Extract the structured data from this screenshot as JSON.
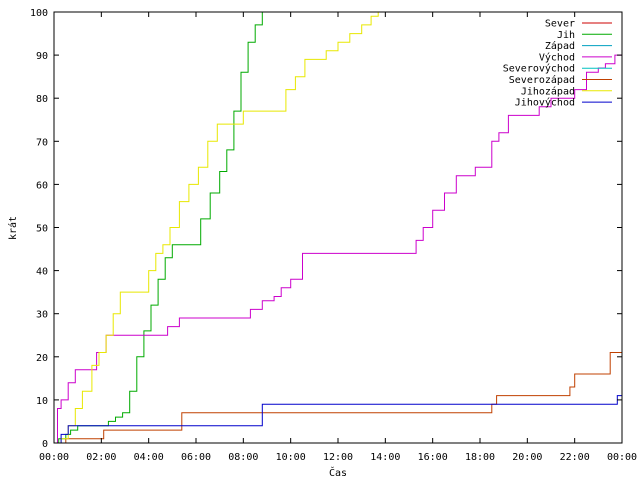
{
  "chart_data": {
    "type": "line",
    "title": "",
    "xlabel": "Čas",
    "ylabel": "krát",
    "xlim": [
      0,
      24
    ],
    "ylim": [
      0,
      100
    ],
    "x_ticks": [
      0,
      2,
      4,
      6,
      8,
      10,
      12,
      14,
      16,
      18,
      20,
      22,
      24
    ],
    "x_tick_labels": [
      "00:00",
      "02:00",
      "04:00",
      "06:00",
      "08:00",
      "10:00",
      "12:00",
      "14:00",
      "16:00",
      "18:00",
      "20:00",
      "22:00",
      "00:00"
    ],
    "y_ticks": [
      0,
      10,
      20,
      30,
      40,
      50,
      60,
      70,
      80,
      90,
      100
    ],
    "grid": false,
    "legend_position": "top-right",
    "series": [
      {
        "name": "Sever",
        "color": "#cc0000",
        "x": [],
        "y": []
      },
      {
        "name": "Jih",
        "color": "#00aa00",
        "x": [
          0,
          0.2,
          0.5,
          0.7,
          1.0,
          1.3,
          1.6,
          1.9,
          2.3,
          2.6,
          2.9,
          3.2,
          3.5,
          3.8,
          4.1,
          4.4,
          4.7,
          5.0,
          5.4,
          5.8,
          6.2,
          6.6,
          7.0,
          7.3,
          7.6,
          7.9,
          8.2,
          8.5,
          8.8,
          9.0
        ],
        "y": [
          0,
          1,
          2,
          3,
          4,
          4,
          4,
          4,
          5,
          6,
          7,
          12,
          20,
          26,
          32,
          38,
          43,
          46,
          46,
          46,
          52,
          58,
          63,
          68,
          77,
          86,
          93,
          97,
          100,
          100
        ]
      },
      {
        "name": "Západ",
        "color": "#00a0c0",
        "x": [],
        "y": []
      },
      {
        "name": "Východ",
        "color": "#cc00cc",
        "x": [
          0,
          0.15,
          0.3,
          0.6,
          0.9,
          1.2,
          1.5,
          1.8,
          2.2,
          3.0,
          4.0,
          4.8,
          5.3,
          6.0,
          7.0,
          7.8,
          8.3,
          8.8,
          9.3,
          9.6,
          10.0,
          10.5,
          12.0,
          14.0,
          15.0,
          15.3,
          15.6,
          16.0,
          16.5,
          17.0,
          17.4,
          17.8,
          18.2,
          18.5,
          18.8,
          19.2,
          19.6,
          20.0,
          20.5,
          21.0,
          21.5,
          22.0,
          22.5,
          23.0,
          23.3,
          23.7,
          24.0
        ],
        "y": [
          0,
          8,
          10,
          14,
          17,
          17,
          17,
          21,
          25,
          25,
          25,
          27,
          29,
          29,
          29,
          29,
          31,
          33,
          34,
          36,
          38,
          44,
          44,
          44,
          44,
          47,
          50,
          54,
          58,
          62,
          62,
          64,
          64,
          70,
          72,
          76,
          76,
          76,
          78,
          80,
          80,
          82,
          86,
          87,
          88,
          90,
          92
        ]
      },
      {
        "name": "Severovýchod",
        "color": "#00c0c0",
        "x": [],
        "y": []
      },
      {
        "name": "Severozápad",
        "color": "#c04000",
        "x": [
          0,
          0.5,
          1.9,
          2.1,
          5.3,
          5.4,
          18.4,
          18.5,
          18.7,
          21.6,
          21.8,
          22.0,
          23.3,
          23.5,
          23.8,
          24.0
        ],
        "y": [
          0,
          1,
          1,
          3,
          3,
          7,
          7,
          9,
          11,
          11,
          13,
          16,
          16,
          21,
          21,
          23
        ]
      },
      {
        "name": "Jihozápad",
        "color": "#e8e800",
        "x": [
          0,
          0.3,
          0.6,
          0.9,
          1.2,
          1.6,
          1.9,
          2.2,
          2.5,
          2.8,
          3.2,
          3.6,
          4.0,
          4.3,
          4.6,
          4.9,
          5.3,
          5.7,
          6.1,
          6.5,
          6.9,
          7.2,
          7.6,
          8.0,
          8.5,
          9.0,
          9.5,
          9.8,
          10.2,
          10.6,
          11.0,
          11.5,
          12.0,
          12.5,
          13.0,
          13.4,
          13.7,
          14.0
        ],
        "y": [
          0,
          1,
          4,
          8,
          12,
          18,
          21,
          25,
          30,
          35,
          35,
          35,
          40,
          44,
          46,
          50,
          56,
          60,
          64,
          70,
          74,
          74,
          74,
          77,
          77,
          77,
          77,
          82,
          85,
          89,
          89,
          91,
          93,
          95,
          97,
          99,
          100,
          100
        ]
      },
      {
        "name": "Jihovýchod",
        "color": "#0000cc",
        "x": [
          0,
          0.3,
          0.6,
          1.9,
          2.2,
          8.6,
          8.8,
          23.6,
          23.8,
          24.0
        ],
        "y": [
          0,
          2,
          4,
          4,
          4,
          4,
          9,
          9,
          11,
          11
        ]
      }
    ]
  }
}
